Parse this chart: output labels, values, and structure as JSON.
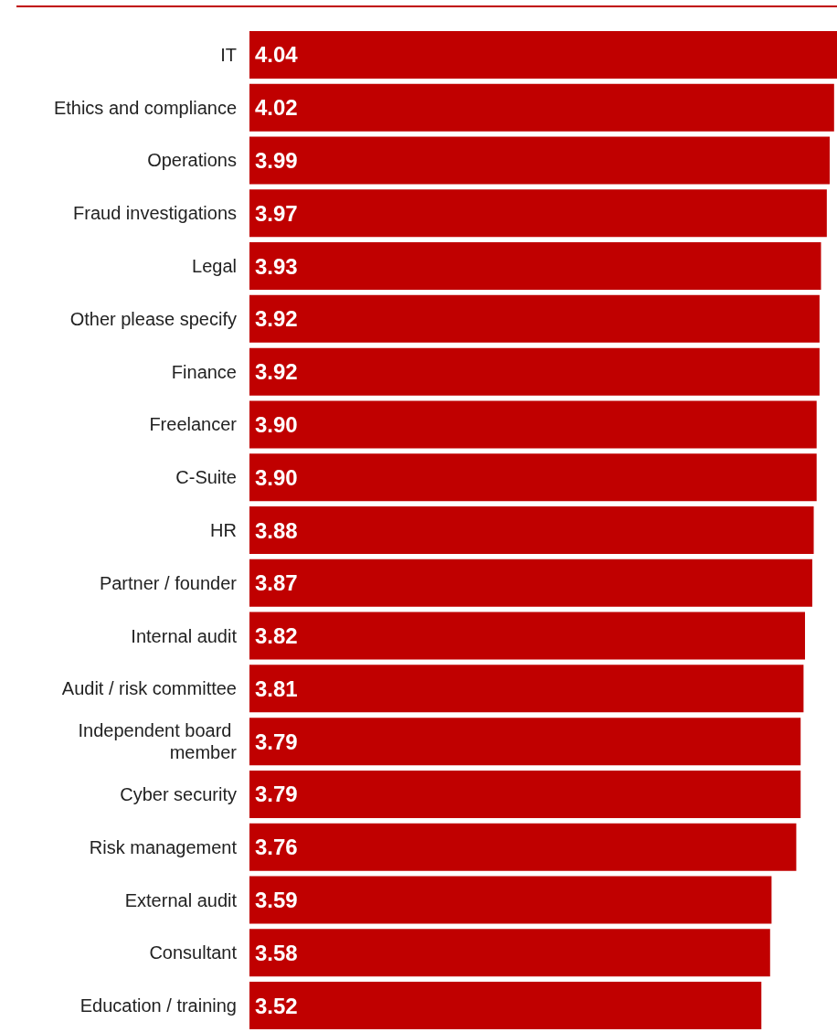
{
  "chart_data": {
    "type": "bar",
    "orientation": "horizontal",
    "categories": [
      "IT",
      "Ethics and compliance",
      "Operations",
      "Fraud investigations",
      "Legal",
      "Other please specify",
      "Finance",
      "Freelancer",
      "C-Suite",
      "HR",
      "Partner / founder",
      "Internal audit",
      "Audit / risk committee",
      "Independent board member",
      "Cyber security",
      "Risk management",
      "External audit",
      "Consultant",
      "Education / training"
    ],
    "values": [
      4.04,
      4.02,
      3.99,
      3.97,
      3.93,
      3.92,
      3.92,
      3.9,
      3.9,
      3.88,
      3.87,
      3.82,
      3.81,
      3.79,
      3.79,
      3.76,
      3.59,
      3.58,
      3.52
    ],
    "value_labels": [
      "4.04",
      "4.02",
      "3.99",
      "3.97",
      "3.93",
      "3.92",
      "3.92",
      "3.90",
      "3.90",
      "3.88",
      "3.87",
      "3.82",
      "3.81",
      "3.79",
      "3.79",
      "3.76",
      "3.59",
      "3.58",
      "3.52"
    ],
    "color": "#c00000",
    "tick_labels": "y",
    "grid": false
  }
}
